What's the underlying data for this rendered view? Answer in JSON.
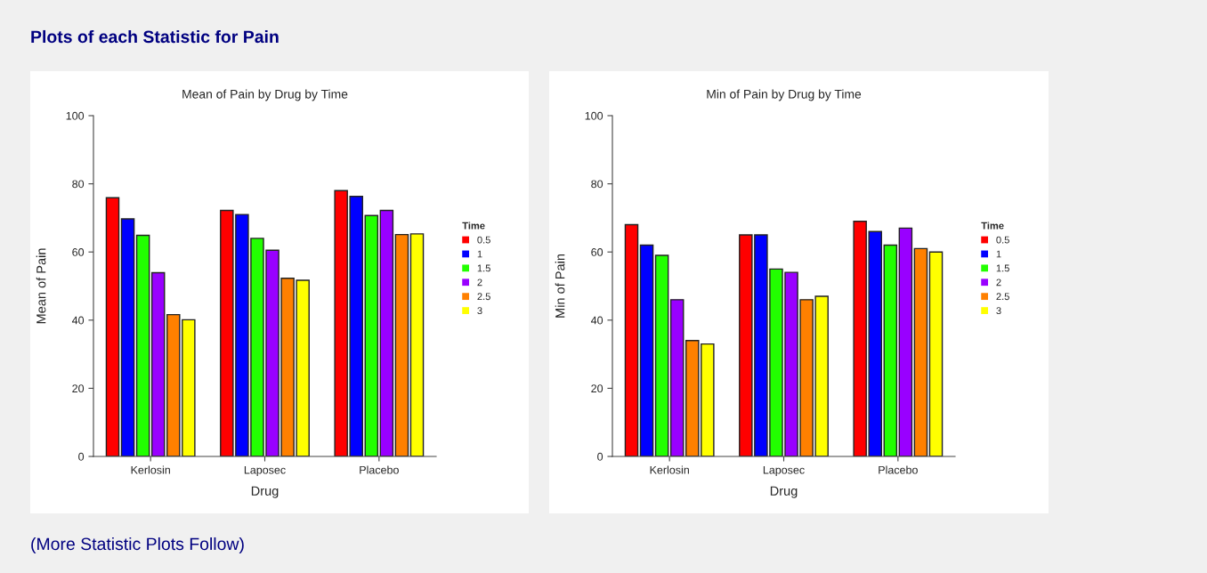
{
  "chart_data": [
    {
      "type": "bar",
      "title": "Mean of Pain by Drug by Time",
      "xlabel": "Drug",
      "ylabel": "Mean of Pain",
      "legend_title": "Time",
      "legend": "right",
      "grid": false,
      "categories": [
        "Kerlosin",
        "Laposec",
        "Placebo"
      ],
      "ylim": [
        0,
        100
      ],
      "yticks": [
        0,
        20,
        40,
        60,
        80,
        100
      ],
      "annotations": [
        "Plots of each Statistic for Pain"
      ],
      "series": [
        {
          "name": "0.5",
          "color": "#ff0000",
          "values": [
            75.9,
            72.2,
            78.0
          ]
        },
        {
          "name": "1",
          "color": "#0000ff",
          "values": [
            69.7,
            71.0,
            76.3
          ]
        },
        {
          "name": "1.5",
          "color": "#22ff00",
          "values": [
            64.9,
            64.0,
            70.7
          ]
        },
        {
          "name": "2",
          "color": "#9900ff",
          "values": [
            53.9,
            60.5,
            72.2
          ]
        },
        {
          "name": "2.5",
          "color": "#ff8000",
          "values": [
            41.6,
            52.3,
            65.1
          ]
        },
        {
          "name": "3",
          "color": "#ffff00",
          "values": [
            40.1,
            51.7,
            65.3
          ]
        }
      ]
    },
    {
      "type": "bar",
      "title": "Min of Pain by Drug by Time",
      "xlabel": "Drug",
      "ylabel": "Min of Pain",
      "legend_title": "Time",
      "legend": "right",
      "grid": false,
      "categories": [
        "Kerlosin",
        "Laposec",
        "Placebo"
      ],
      "ylim": [
        0,
        100
      ],
      "yticks": [
        0,
        20,
        40,
        60,
        80,
        100
      ],
      "annotations": [
        "(More Statistic Plots Follow)"
      ],
      "series": [
        {
          "name": "0.5",
          "color": "#ff0000",
          "values": [
            68,
            65,
            69
          ]
        },
        {
          "name": "1",
          "color": "#0000ff",
          "values": [
            62,
            65,
            66
          ]
        },
        {
          "name": "1.5",
          "color": "#22ff00",
          "values": [
            59,
            55,
            62
          ]
        },
        {
          "name": "2",
          "color": "#9900ff",
          "values": [
            46,
            54,
            67
          ]
        },
        {
          "name": "2.5",
          "color": "#ff8000",
          "values": [
            34,
            46,
            61
          ]
        },
        {
          "name": "3",
          "color": "#ffff00",
          "values": [
            33,
            47,
            60
          ]
        }
      ]
    }
  ]
}
